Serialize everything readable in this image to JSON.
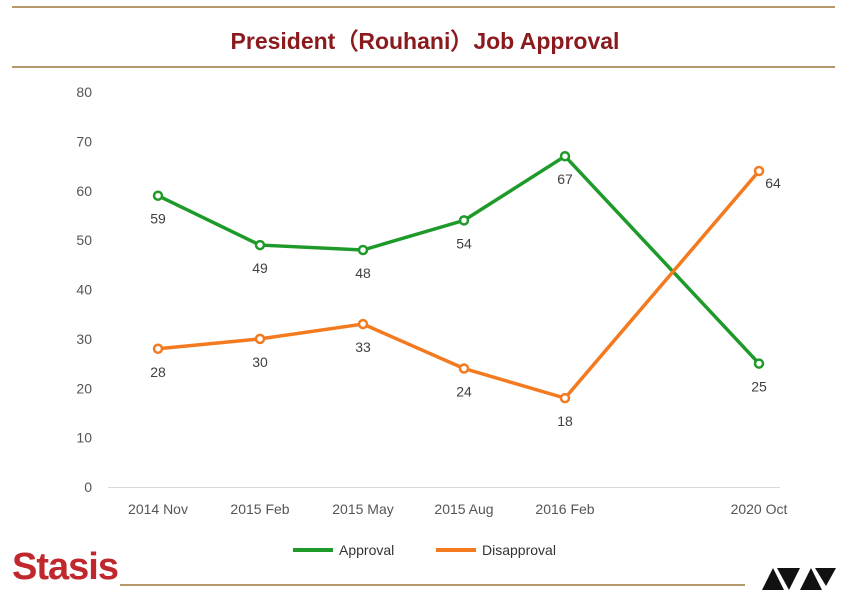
{
  "title": "President（Rouhani）Job Approval",
  "colors": {
    "approval": "#1e9a2a",
    "disapproval": "#f47a20",
    "rule": "#b5996a",
    "title": "#8b1a1f",
    "logo_red": "#c0282d"
  },
  "chart_data": {
    "type": "line",
    "categories": [
      "2014 Nov",
      "2015 Feb",
      "2015 May",
      "2015 Aug",
      "2016 Feb",
      "2020 Oct"
    ],
    "series": [
      {
        "name": "Approval",
        "values": [
          59,
          49,
          48,
          54,
          67,
          25
        ]
      },
      {
        "name": "Disapproval",
        "values": [
          28,
          30,
          33,
          24,
          18,
          64
        ]
      }
    ],
    "ylim": [
      0,
      80
    ],
    "yticks": [
      0,
      10,
      20,
      30,
      40,
      50,
      60,
      70,
      80
    ],
    "grid": false,
    "legend_position": "bottom"
  },
  "legend": {
    "approval_label": "Approval",
    "disapproval_label": "Disapproval"
  },
  "footer": {
    "logo_text": "Stasis",
    "partner_logo_icon": "ava-logo-icon"
  }
}
